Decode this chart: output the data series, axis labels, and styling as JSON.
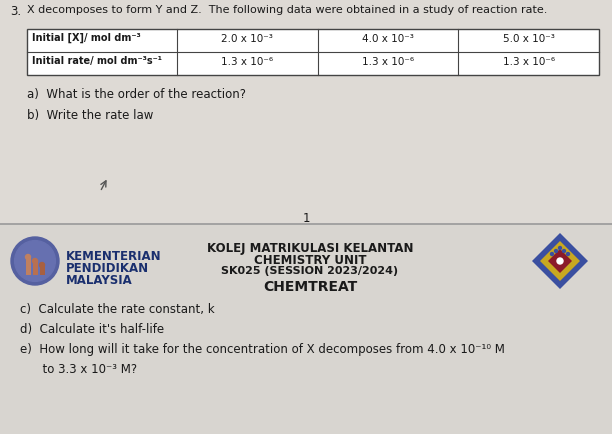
{
  "question_number": "3.",
  "question_text": "X decomposes to form Y and Z.  The following data were obtained in a study of reaction rate.",
  "table": {
    "row1_label": "Initial [X]/ mol dm⁻³",
    "row2_label": "Initial rate/ mol dm⁻³s⁻¹",
    "col1_r1": "2.0 x 10⁻³",
    "col2_r1": "4.0 x 10⁻³",
    "col3_r1": "5.0 x 10⁻³",
    "col1_r2": "1.3 x 10⁻⁶",
    "col2_r2": "1.3 x 10⁻⁶",
    "col3_r2": "1.3 x 10⁻⁶"
  },
  "part_a": "a)  What is the order of the reaction?",
  "part_b": "b)  Write the rate law",
  "page_number": "1",
  "header_line1": "KOLEJ MATRIKULASI KELANTAN",
  "header_line2": "CHEMISTRY UNIT",
  "header_line3": "SK025 (SESSION 2023/2024)",
  "header_line4": "CHEMTREAT",
  "org_line1": "KEMENTERIAN",
  "org_line2": "PENDIDIKAN",
  "org_line3": "MALAYSIA",
  "part_c": "c)  Calculate the rate constant, k",
  "part_d": "d)  Calculate it's half-life",
  "part_e1": "e)  How long will it take for the concentration of X decomposes from 4.0 x 10⁻¹⁰ M",
  "part_e2": "      to 3.3 x 10⁻³ M?",
  "bg_color": "#d8d5d0",
  "top_bg": "#dedad5",
  "bottom_bg": "#d8d5d0",
  "text_color": "#1a1a1a",
  "bold_blue": "#1a2f6e",
  "table_border_color": "#444444",
  "divider_color": "#999999"
}
